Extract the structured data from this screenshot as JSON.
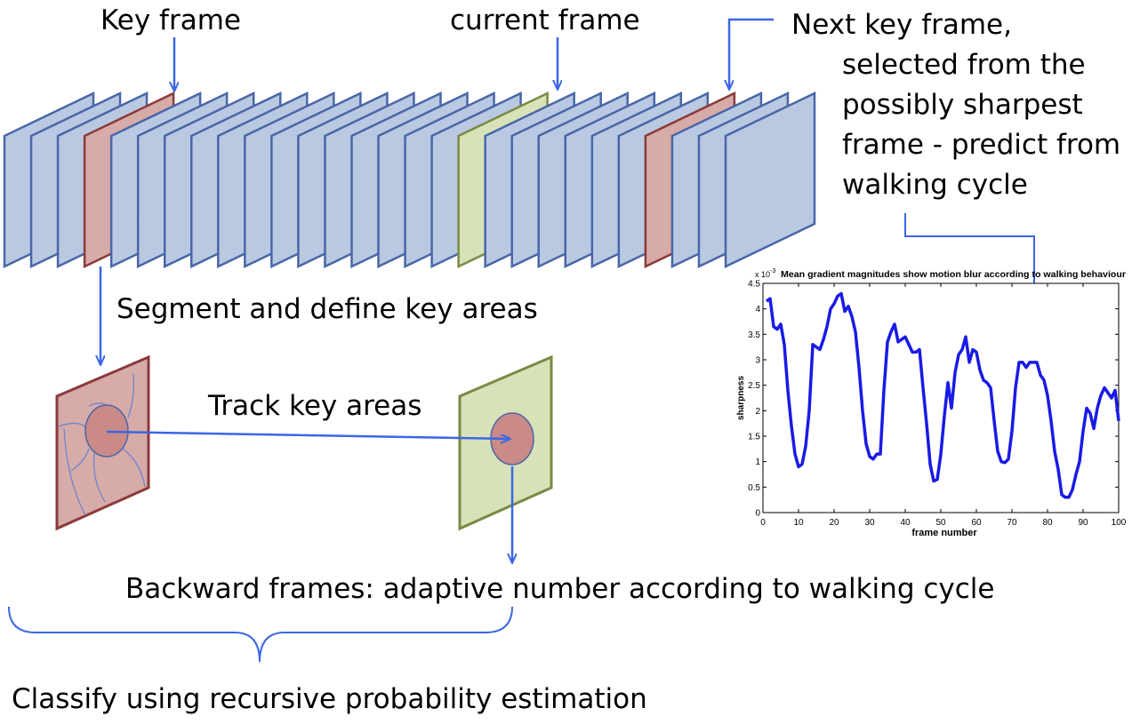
{
  "labels": {
    "key_frame": "Key frame",
    "current_frame": "current frame",
    "next_key_frame_lines": [
      "Next key frame,",
      "selected  from the",
      "possibly sharpest",
      "frame - predict from",
      "walking cycle"
    ],
    "segment": "Segment and define key areas",
    "track": "Track key areas",
    "backward": "Backward frames: adaptive number according to walking cycle",
    "classify": "Classify using recursive probability estimation"
  },
  "frames": {
    "count": 28,
    "key_frame_index": 3,
    "current_frame_index": 17,
    "next_key_frame_index": 24
  },
  "colors": {
    "frame_fill": "#b9c9e2",
    "frame_stroke": "#4a66a8",
    "key_fill": "#d7aba7",
    "key_stroke": "#8b3a3a",
    "current_fill": "#d8e2b8",
    "current_stroke": "#7a8a44",
    "arrow": "#3b66e6",
    "plot_line": "#1a1ae6"
  },
  "chart_data": {
    "type": "line",
    "title": "Mean gradient magnitudes show motion blur according to walking behaviour",
    "xlabel": "frame number",
    "ylabel": "sharpness",
    "y_multiplier": "x 10",
    "y_multiplier_exp": "-3",
    "xlim": [
      0,
      100
    ],
    "ylim": [
      0,
      4.5
    ],
    "xticks": [
      0,
      10,
      20,
      30,
      40,
      50,
      60,
      70,
      80,
      90,
      100
    ],
    "yticks": [
      0,
      0.5,
      1,
      1.5,
      2,
      2.5,
      3,
      3.5,
      4,
      4.5
    ],
    "grid": false,
    "series": [
      {
        "x": [
          1,
          2,
          3,
          4,
          5,
          6,
          7,
          8,
          9,
          10,
          11,
          12,
          13,
          14,
          15,
          16,
          17,
          18,
          19,
          20,
          21,
          22,
          23,
          24,
          25,
          26,
          27,
          28,
          29,
          30,
          31,
          32,
          33,
          34,
          35,
          36,
          37,
          38,
          39,
          40,
          41,
          42,
          43,
          44,
          45,
          46,
          47,
          48,
          49,
          50,
          51,
          52,
          53,
          54,
          55,
          56,
          57,
          58,
          59,
          60,
          61,
          62,
          63,
          64,
          65,
          66,
          67,
          68,
          69,
          70,
          71,
          72,
          73,
          74,
          75,
          76,
          77,
          78,
          79,
          80,
          81,
          82,
          83,
          84,
          85,
          86,
          87,
          88,
          89,
          90,
          91,
          92,
          93,
          94,
          95,
          96,
          97,
          98,
          99,
          100
        ],
        "y": [
          4.15,
          4.2,
          3.65,
          3.6,
          3.7,
          3.3,
          2.4,
          1.7,
          1.15,
          0.9,
          0.95,
          1.3,
          2.0,
          3.3,
          3.25,
          3.2,
          3.4,
          3.65,
          4.0,
          4.1,
          4.25,
          4.3,
          3.95,
          4.05,
          3.85,
          3.55,
          2.85,
          2.0,
          1.35,
          1.1,
          1.05,
          1.15,
          1.15,
          2.4,
          3.35,
          3.55,
          3.7,
          3.35,
          3.4,
          3.45,
          3.3,
          3.15,
          3.15,
          3.2,
          2.45,
          1.75,
          0.95,
          0.62,
          0.65,
          1.15,
          1.9,
          2.55,
          2.05,
          2.75,
          3.1,
          3.2,
          3.45,
          2.95,
          3.2,
          3.15,
          2.8,
          2.6,
          2.55,
          2.45,
          1.8,
          1.2,
          1.0,
          0.98,
          1.05,
          1.6,
          2.45,
          2.95,
          2.95,
          2.85,
          2.95,
          2.95,
          2.95,
          2.7,
          2.6,
          2.3,
          1.8,
          1.2,
          0.85,
          0.35,
          0.3,
          0.3,
          0.45,
          0.75,
          1.0,
          1.6,
          2.05,
          1.95,
          1.65,
          2.05,
          2.3,
          2.45,
          2.35,
          2.25,
          2.4,
          1.8
        ]
      }
    ]
  }
}
